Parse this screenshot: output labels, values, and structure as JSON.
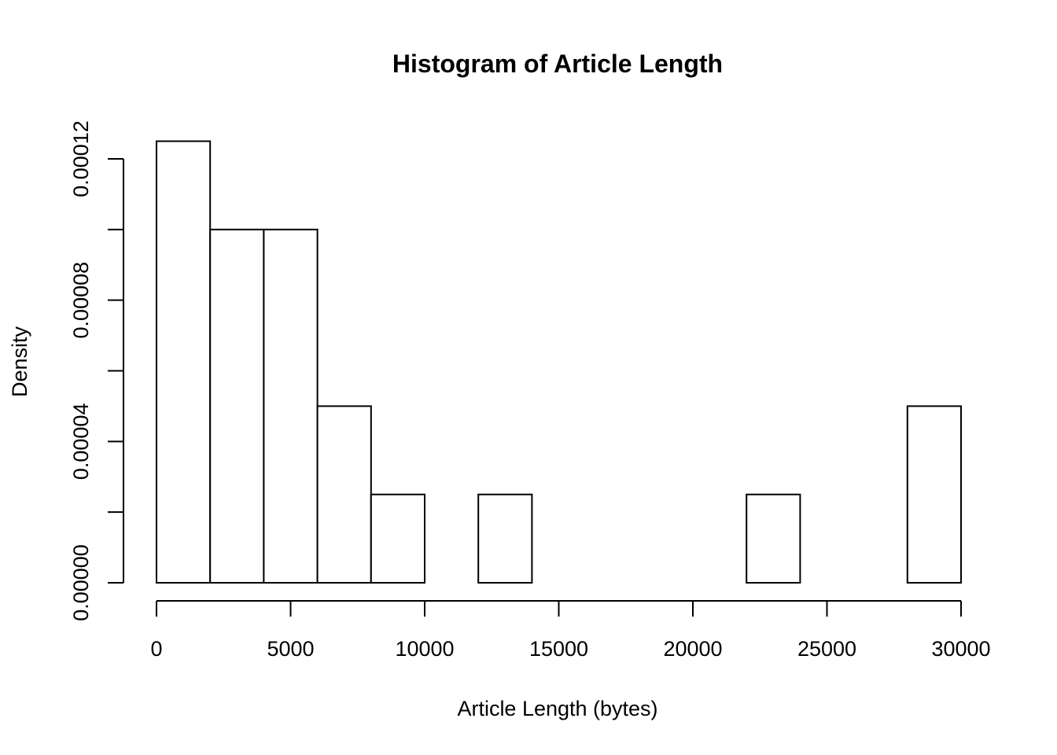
{
  "chart_data": {
    "type": "bar",
    "subtype": "histogram",
    "title": "Histogram of Article Length",
    "xlabel": "Article Length (bytes)",
    "ylabel": "Density",
    "xlim": [
      0,
      30000
    ],
    "ylim": [
      0,
      0.00012
    ],
    "x_ticks": [
      0,
      5000,
      10000,
      15000,
      20000,
      25000,
      30000
    ],
    "x_tick_labels": [
      "0",
      "5000",
      "10000",
      "15000",
      "20000",
      "25000",
      "30000"
    ],
    "y_ticks": [
      0,
      2e-05,
      4e-05,
      6e-05,
      8e-05,
      0.0001,
      0.00012
    ],
    "y_tick_labels": [
      "0.00000",
      "",
      "0.00004",
      "",
      "0.00008",
      "",
      "0.00012"
    ],
    "bins": [
      {
        "start": 0,
        "end": 2000,
        "density": 0.000125
      },
      {
        "start": 2000,
        "end": 4000,
        "density": 0.0001
      },
      {
        "start": 4000,
        "end": 6000,
        "density": 0.0001
      },
      {
        "start": 6000,
        "end": 8000,
        "density": 5e-05
      },
      {
        "start": 8000,
        "end": 10000,
        "density": 2.5e-05
      },
      {
        "start": 10000,
        "end": 12000,
        "density": 0
      },
      {
        "start": 12000,
        "end": 14000,
        "density": 2.5e-05
      },
      {
        "start": 14000,
        "end": 16000,
        "density": 0
      },
      {
        "start": 16000,
        "end": 18000,
        "density": 0
      },
      {
        "start": 18000,
        "end": 20000,
        "density": 0
      },
      {
        "start": 20000,
        "end": 22000,
        "density": 0
      },
      {
        "start": 22000,
        "end": 24000,
        "density": 2.5e-05
      },
      {
        "start": 24000,
        "end": 26000,
        "density": 0
      },
      {
        "start": 26000,
        "end": 28000,
        "density": 0
      },
      {
        "start": 28000,
        "end": 30000,
        "density": 5e-05
      }
    ],
    "bar_fill": "#ffffff",
    "bar_stroke": "#000000",
    "grid": false,
    "legend": "none"
  }
}
